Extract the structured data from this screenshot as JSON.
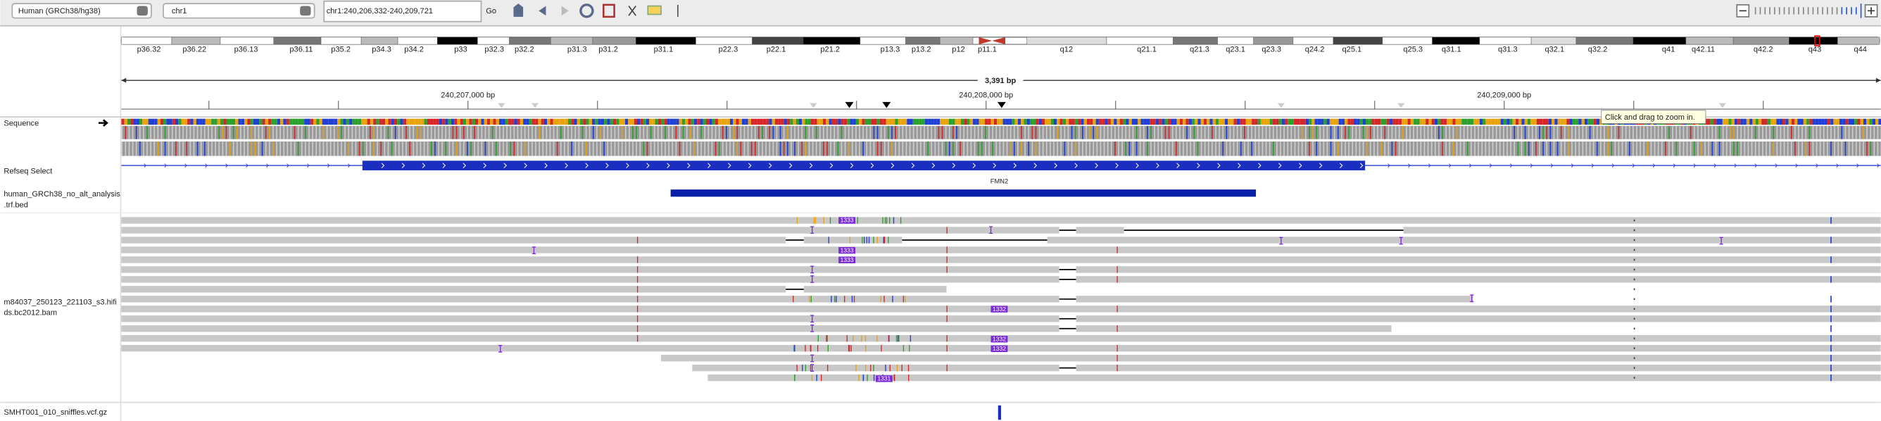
{
  "toolbar": {
    "genome": "Human (GRCh38/hg38)",
    "chromosome": "chr1",
    "locus": "chr1:240,206,332-240,209,721",
    "go": "Go"
  },
  "ideogram": {
    "bands": [
      "p36.32",
      "p36.22",
      "p36.13",
      "p36.11",
      "p35.2",
      "p34.3",
      "p34.2",
      "p33",
      "p32.3",
      "p32.2",
      "p31.3",
      "p31.2",
      "p31.1",
      "p22.3",
      "p22.1",
      "p21.2",
      "p13.3",
      "p13.2",
      "p12",
      "p11.1",
      "q12",
      "q21.1",
      "q21.3",
      "q23.1",
      "q23.3",
      "q24.2",
      "q25.1",
      "q25.3",
      "q31.1",
      "q31.3",
      "q32.1",
      "q32.2",
      "q41",
      "q42.11",
      "q42.2",
      "q43",
      "q44"
    ]
  },
  "ruler": {
    "span": "3,391 bp",
    "ticks": [
      "240,207,000 bp",
      "240,208,000 bp",
      "240,209,000 bp"
    ]
  },
  "tracks": {
    "sequence": "Sequence",
    "refseq": "Refseq Select",
    "gene": "FMN2",
    "bed": [
      "human_GRCh38_no_alt_analysis",
      ".trf.bed"
    ],
    "bam": [
      "m84037_250123_221103_s3.hifi",
      "ds.bc2012.bam"
    ],
    "vcf": "SMHT001_010_sniffles.vcf.gz"
  },
  "reads": {
    "insertion_labels": [
      "1333",
      "1333",
      "1333",
      "1332",
      "1332",
      "1332",
      "1331"
    ]
  },
  "tooltip": "Click and drag to zoom in."
}
